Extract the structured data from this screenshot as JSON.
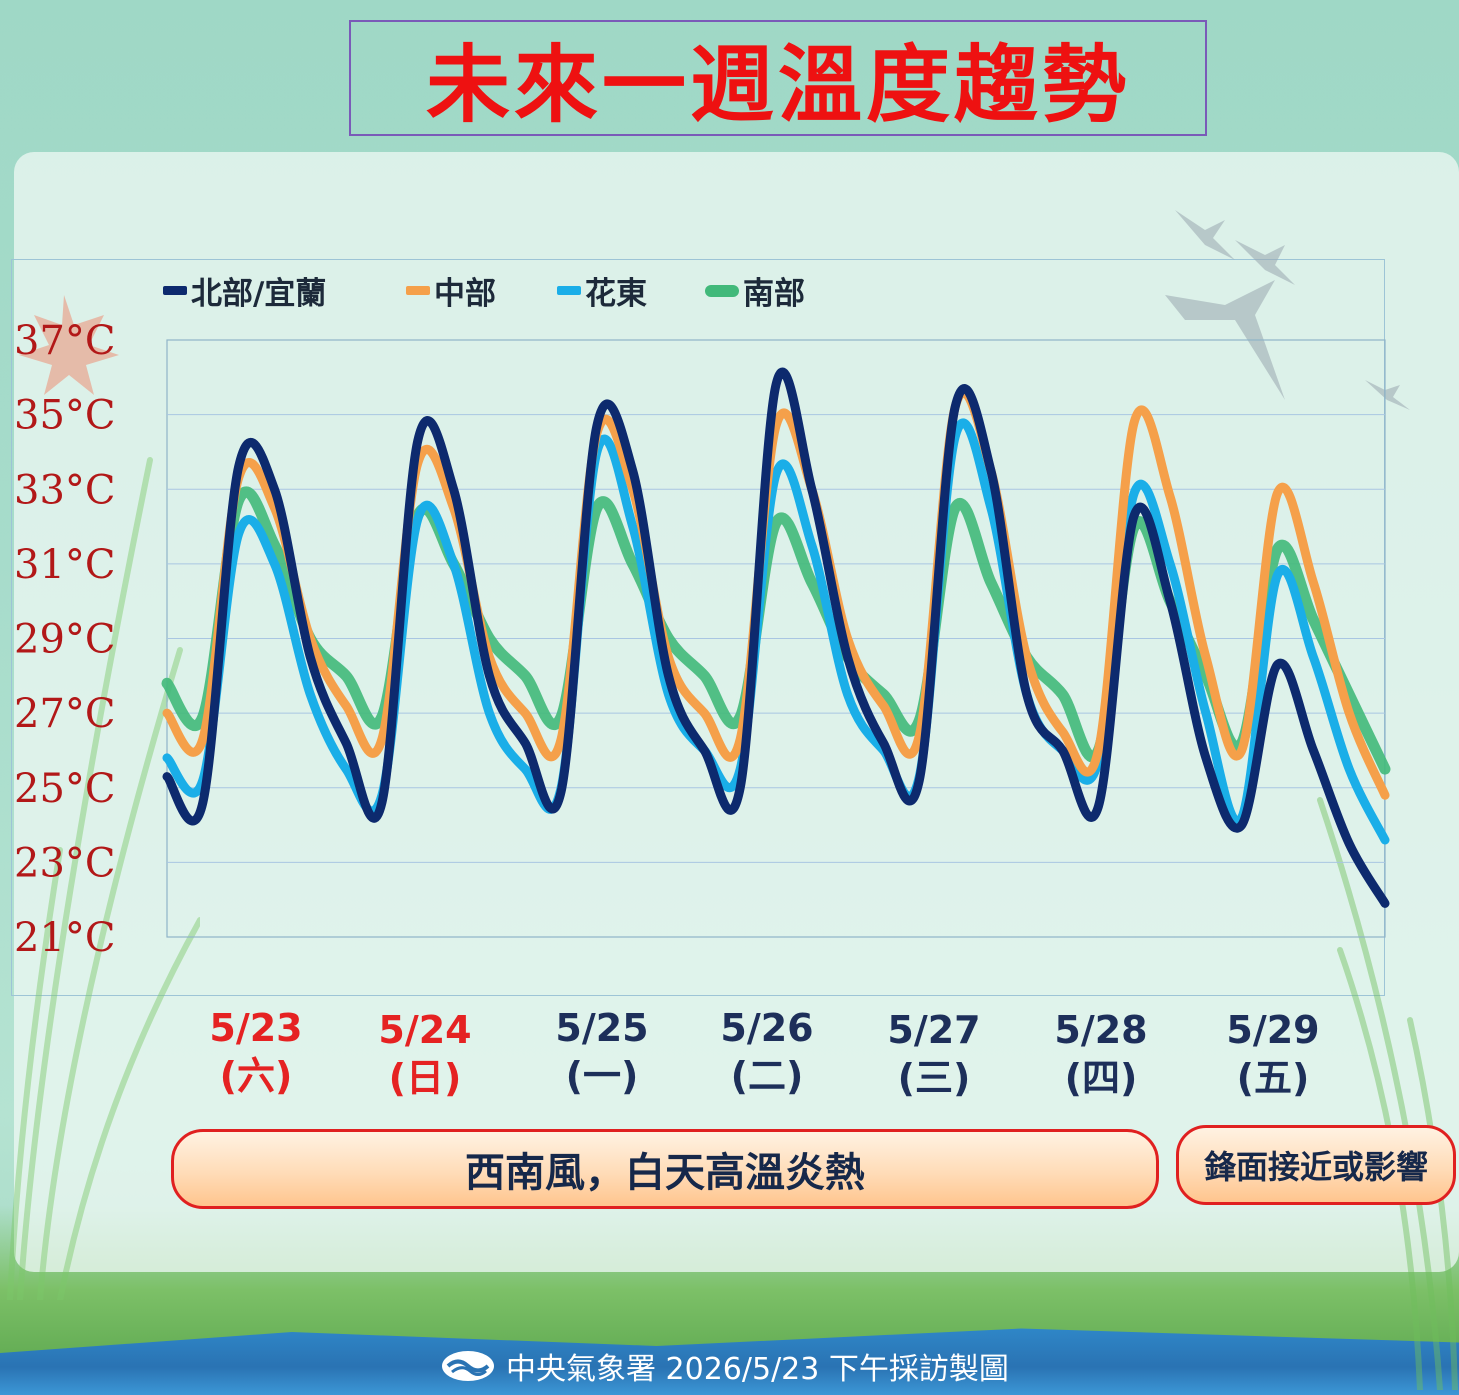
{
  "title": "未來一週溫度趨勢",
  "legend": [
    {
      "label": "北部/宜蘭",
      "color": "#0d2a6e"
    },
    {
      "label": "中部",
      "color": "#f5a04a"
    },
    {
      "label": "花東",
      "color": "#1aaee8"
    },
    {
      "label": "南部",
      "color": "#41b97a"
    }
  ],
  "x_labels": [
    {
      "date": "5/23",
      "weekday": "(六)",
      "color": "#e52222"
    },
    {
      "date": "5/24",
      "weekday": "(日)",
      "color": "#e52222"
    },
    {
      "date": "5/25",
      "weekday": "(一)",
      "color": "#1d2f5a"
    },
    {
      "date": "5/26",
      "weekday": "(二)",
      "color": "#1d2f5a"
    },
    {
      "date": "5/27",
      "weekday": "(三)",
      "color": "#1d2f5a"
    },
    {
      "date": "5/28",
      "weekday": "(四)",
      "color": "#1d2f5a"
    },
    {
      "date": "5/29",
      "weekday": "(五)",
      "color": "#1d2f5a"
    }
  ],
  "bands": [
    {
      "text": "西南風，白天高溫炎熱"
    },
    {
      "text": "鋒面接近或影響"
    }
  ],
  "footer": "中央氣象署 2026/5/23 下午採訪製圖",
  "chart_data": {
    "type": "line",
    "yticks": [
      "21°C",
      "23°C",
      "25°C",
      "27°C",
      "29°C",
      "31°C",
      "33°C",
      "35°C",
      "37°C"
    ],
    "ylim": [
      21,
      37
    ],
    "x_points_per_day": 8,
    "series": [
      {
        "name": "北部/宜蘭",
        "color": "#0d2a6e",
        "values": [
          25.3,
          24.6,
          33.6,
          33.0,
          28.5,
          26.2,
          24.6,
          34.3,
          33.0,
          28.0,
          26.2,
          24.9,
          34.7,
          33.5,
          28.0,
          26.0,
          25.0,
          35.8,
          33.0,
          28.5,
          26.2,
          25.2,
          35.2,
          33.5,
          27.5,
          26.0,
          24.5,
          32.3,
          30.0,
          25.8,
          24.0,
          28.3,
          26.0,
          23.5,
          21.9
        ]
      },
      {
        "name": "中部",
        "color": "#f5a04a",
        "values": [
          27.0,
          26.3,
          33.3,
          32.5,
          29.0,
          27.2,
          26.3,
          33.7,
          32.5,
          28.5,
          27.0,
          26.3,
          34.5,
          33.0,
          28.5,
          27.0,
          26.3,
          34.7,
          33.0,
          29.0,
          27.2,
          26.4,
          35.2,
          33.5,
          28.5,
          26.5,
          26.0,
          34.8,
          32.8,
          28.5,
          26.0,
          32.9,
          30.5,
          27.0,
          24.8
        ]
      },
      {
        "name": "花東",
        "color": "#1aaee8",
        "values": [
          25.8,
          25.2,
          31.8,
          31.0,
          27.5,
          25.5,
          24.8,
          32.2,
          31.0,
          27.0,
          25.5,
          25.0,
          34.0,
          32.0,
          27.5,
          26.0,
          25.5,
          33.4,
          31.5,
          27.5,
          26.0,
          25.3,
          34.4,
          32.5,
          27.5,
          26.0,
          25.7,
          32.9,
          31.0,
          27.0,
          24.2,
          30.7,
          28.5,
          25.5,
          23.6
        ]
      },
      {
        "name": "南部",
        "color": "#41b97a",
        "values": [
          27.8,
          26.9,
          32.7,
          31.5,
          29.0,
          28.0,
          26.9,
          32.3,
          31.0,
          29.0,
          28.0,
          26.9,
          32.5,
          31.0,
          29.0,
          28.0,
          26.9,
          32.1,
          30.5,
          28.5,
          27.5,
          26.8,
          32.5,
          30.5,
          28.5,
          27.5,
          26.0,
          32.0,
          30.0,
          28.0,
          26.2,
          31.4,
          29.5,
          27.5,
          25.5
        ]
      }
    ]
  }
}
